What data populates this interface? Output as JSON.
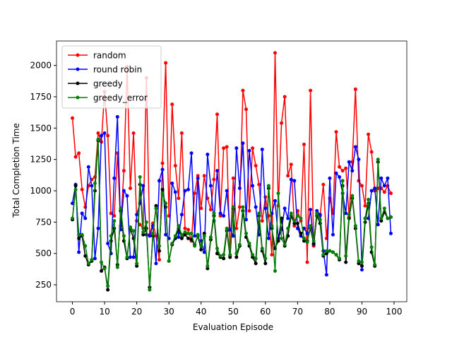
{
  "chart_data": {
    "type": "line",
    "xlabel": "Evaluation Episode",
    "ylabel": "Total Completion Time",
    "x": [
      0,
      1,
      2,
      3,
      4,
      5,
      6,
      7,
      8,
      9,
      10,
      11,
      12,
      13,
      14,
      15,
      16,
      17,
      18,
      19,
      20,
      21,
      22,
      23,
      24,
      25,
      26,
      27,
      28,
      29,
      30,
      31,
      32,
      33,
      34,
      35,
      36,
      37,
      38,
      39,
      40,
      41,
      42,
      43,
      44,
      45,
      46,
      47,
      48,
      49,
      50,
      51,
      52,
      53,
      54,
      55,
      56,
      57,
      58,
      59,
      60,
      61,
      62,
      63,
      64,
      65,
      66,
      67,
      68,
      69,
      70,
      71,
      72,
      73,
      74,
      75,
      76,
      77,
      78,
      79,
      80,
      81,
      82,
      83,
      84,
      85,
      86,
      87,
      88,
      89,
      90,
      91,
      92,
      93,
      94,
      95,
      96,
      97,
      98,
      99
    ],
    "xlim": [
      -4.95,
      103.95
    ],
    "xticks": [
      0,
      10,
      20,
      30,
      40,
      50,
      60,
      70,
      80,
      90,
      100
    ],
    "ylim": [
      115,
      2195
    ],
    "yticks": [
      250,
      500,
      750,
      1000,
      1250,
      1500,
      1750,
      2000
    ],
    "legend": "upper left",
    "series": [
      {
        "name": "random",
        "color": "#ff0000",
        "values": [
          1580,
          1270,
          1300,
          1010,
          870,
          1040,
          1090,
          1110,
          1460,
          1390,
          1790,
          1440,
          820,
          800,
          1300,
          720,
          1160,
          1990,
          1020,
          1460,
          760,
          730,
          700,
          1900,
          650,
          740,
          640,
          450,
          1220,
          2020,
          800,
          1690,
          1200,
          940,
          1460,
          700,
          690,
          600,
          980,
          1120,
          860,
          1120,
          940,
          850,
          1090,
          1610,
          800,
          1340,
          1350,
          480,
          1100,
          700,
          870,
          1800,
          1650,
          840,
          1340,
          1200,
          1050,
          760,
          950,
          800,
          490,
          2100,
          880,
          1540,
          1750,
          1120,
          1210,
          720,
          840,
          760,
          1370,
          430,
          1800,
          560,
          820,
          800,
          1050,
          620,
          940,
          820,
          1470,
          1190,
          1160,
          1180,
          790,
          1230,
          1810,
          1080,
          1040,
          880,
          1450,
          1310,
          1000,
          1020,
          1020,
          990,
          1040,
          980
        ]
      },
      {
        "name": "round robin",
        "color": "#0000ff",
        "values": [
          900,
          1050,
          510,
          820,
          780,
          1190,
          1040,
          460,
          700,
          1440,
          1460,
          580,
          500,
          1100,
          1590,
          690,
          1000,
          960,
          470,
          470,
          810,
          900,
          1040,
          650,
          640,
          720,
          420,
          1080,
          1170,
          650,
          620,
          1060,
          990,
          630,
          810,
          1000,
          1010,
          1300,
          640,
          1100,
          600,
          510,
          1290,
          1040,
          760,
          1160,
          820,
          800,
          1000,
          690,
          640,
          1340,
          1020,
          1380,
          770,
          1320,
          1040,
          870,
          650,
          1330,
          860,
          620,
          820,
          920,
          620,
          690,
          860,
          780,
          1090,
          1080,
          700,
          640,
          700,
          660,
          850,
          570,
          840,
          810,
          520,
          330,
          1100,
          650,
          1140,
          1110,
          980,
          820,
          1230,
          1160,
          1350,
          1250,
          370,
          780,
          780,
          1000,
          1020,
          730,
          1100,
          1040,
          1100,
          660
        ]
      },
      {
        "name": "greedy",
        "color": "#000000",
        "values": [
          770,
          1040,
          620,
          640,
          480,
          410,
          440,
          1000,
          1400,
          360,
          390,
          210,
          600,
          700,
          410,
          840,
          600,
          460,
          700,
          620,
          400,
          1050,
          650,
          700,
          230,
          640,
          880,
          520,
          1010,
          870,
          440,
          570,
          620,
          700,
          620,
          650,
          620,
          610,
          570,
          640,
          530,
          660,
          380,
          610,
          800,
          500,
          470,
          460,
          680,
          470,
          860,
          470,
          560,
          840,
          630,
          560,
          470,
          420,
          800,
          520,
          420,
          1020,
          700,
          540,
          600,
          780,
          560,
          640,
          800,
          740,
          740,
          660,
          600,
          600,
          700,
          580,
          800,
          740,
          480,
          500,
          520,
          510,
          490,
          450,
          1040,
          430,
          780,
          940,
          700,
          420,
          400,
          750,
          900,
          510,
          400,
          1230,
          760,
          830,
          780,
          790
        ]
      },
      {
        "name": "greedy_error",
        "color": "#008000",
        "values": [
          780,
          1010,
          650,
          650,
          560,
          420,
          450,
          1060,
          1410,
          430,
          380,
          240,
          640,
          760,
          390,
          860,
          640,
          470,
          710,
          680,
          420,
          1110,
          670,
          750,
          210,
          660,
          860,
          560,
          980,
          900,
          440,
          580,
          640,
          720,
          650,
          670,
          660,
          660,
          560,
          650,
          560,
          640,
          400,
          630,
          820,
          540,
          480,
          490,
          700,
          490,
          870,
          500,
          570,
          870,
          660,
          580,
          490,
          460,
          820,
          540,
          460,
          1040,
          720,
          360,
          980,
          620,
          570,
          700,
          820,
          760,
          800,
          780,
          620,
          590,
          720,
          600,
          820,
          770,
          490,
          520,
          520,
          510,
          490,
          460,
          1080,
          480,
          810,
          960,
          720,
          440,
          430,
          780,
          930,
          550,
          410,
          1250,
          780,
          860,
          780,
          790
        ]
      }
    ]
  }
}
